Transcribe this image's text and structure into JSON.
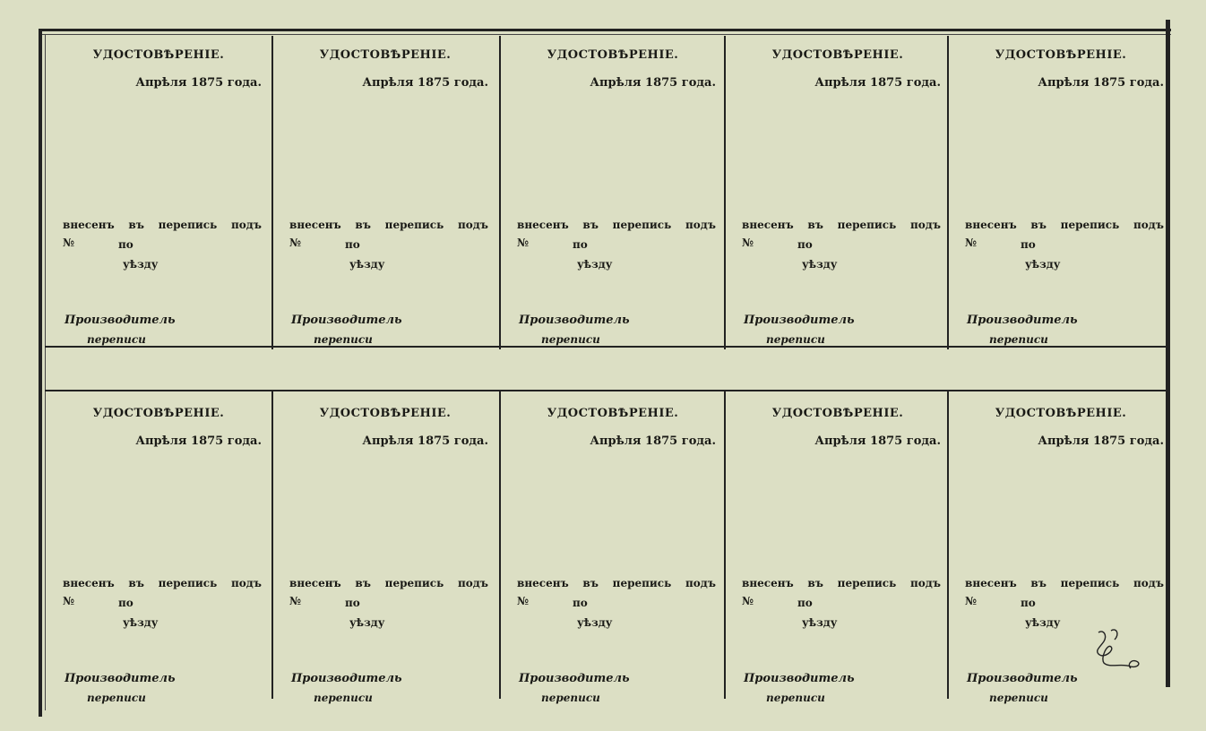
{
  "cells": [
    {
      "title": "УДОСТОВѢРЕНІЕ.",
      "date": "Апрѣля 1875 года.",
      "entered": [
        "внесенъ",
        "въ",
        "перепись",
        "подъ"
      ],
      "number_sign": "№",
      "po": "по",
      "uezd": "уѣзду",
      "maker": "Производитель",
      "census": "переписи"
    },
    {
      "title": "УДОСТОВѢРЕНІЕ.",
      "date": "Апрѣля 1875 года.",
      "entered": [
        "внесенъ",
        "въ",
        "перепись",
        "подъ"
      ],
      "number_sign": "№",
      "po": "по",
      "uezd": "уѣзду",
      "maker": "Производитель",
      "census": "переписи"
    },
    {
      "title": "УДОСТОВѢРЕНІЕ.",
      "date": "Апрѣля 1875 года.",
      "entered": [
        "внесенъ",
        "въ",
        "перепись",
        "подъ"
      ],
      "number_sign": "№",
      "po": "по",
      "uezd": "уѣзду",
      "maker": "Производитель",
      "census": "переписи"
    },
    {
      "title": "УДОСТОВѢРЕНІЕ.",
      "date": "Апрѣля 1875 года.",
      "entered": [
        "внесенъ",
        "въ",
        "перепись",
        "подъ"
      ],
      "number_sign": "№",
      "po": "по",
      "uezd": "уѣзду",
      "maker": "Производитель",
      "census": "переписи"
    },
    {
      "title": "УДОСТОВѢРЕНІЕ.",
      "date": "Апрѣля 1875 года.",
      "entered": [
        "внесенъ",
        "въ",
        "перепись",
        "подъ"
      ],
      "number_sign": "№",
      "po": "по",
      "uezd": "уѣзду",
      "maker": "Производитель",
      "census": "переписи"
    },
    {
      "title": "УДОСТОВѢРЕНІЕ.",
      "date": "Апрѣля 1875 года.",
      "entered": [
        "внесенъ",
        "въ",
        "перепись",
        "подъ"
      ],
      "number_sign": "№",
      "po": "по",
      "uezd": "уѣзду",
      "maker": "Производитель",
      "census": "переписи"
    },
    {
      "title": "УДОСТОВѢРЕНІЕ.",
      "date": "Апрѣля 1875 года.",
      "entered": [
        "внесенъ",
        "въ",
        "перепись",
        "подъ"
      ],
      "number_sign": "№",
      "po": "по",
      "uezd": "уѣзду",
      "maker": "Производитель",
      "census": "переписи"
    },
    {
      "title": "УДОСТОВѢРЕНІЕ.",
      "date": "Апрѣля 1875 года.",
      "entered": [
        "внесенъ",
        "въ",
        "перепись",
        "подъ"
      ],
      "number_sign": "№",
      "po": "по",
      "uezd": "уѣзду",
      "maker": "Производитель",
      "census": "переписи"
    },
    {
      "title": "УДОСТОВѢРЕНІЕ.",
      "date": "Апрѣля 1875 года.",
      "entered": [
        "внесенъ",
        "въ",
        "перепись",
        "подъ"
      ],
      "number_sign": "№",
      "po": "по",
      "uezd": "уѣзду",
      "maker": "Производитель",
      "census": "переписи"
    },
    {
      "title": "УДОСТОВѢРЕНІЕ.",
      "date": "Апрѣля 1875 года.",
      "entered": [
        "внесенъ",
        "въ",
        "перепись",
        "подъ"
      ],
      "number_sign": "№",
      "po": "по",
      "uezd": "уѣзду",
      "maker": "Производитель",
      "census": "переписи"
    }
  ],
  "colors": {
    "paper": "#dcdfc4",
    "ink": "#1a1a16"
  }
}
